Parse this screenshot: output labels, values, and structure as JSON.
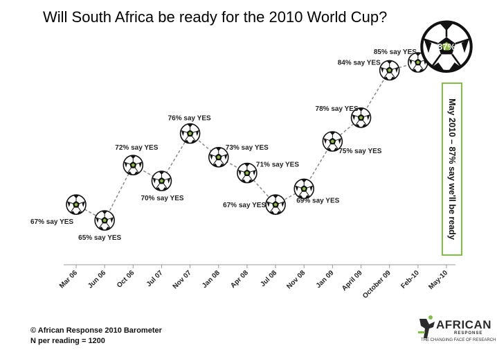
{
  "chart_data": {
    "type": "line",
    "title": "Will South Africa be ready for the 2010 World Cup?",
    "categories": [
      "Mar 06",
      "Jun 06",
      "Oct 06",
      "Jul 07",
      "Nov 07",
      "Jan 08",
      "Apr 08",
      "Jul 08",
      "Nov 08",
      "Jan 09",
      "April 09",
      "October 09",
      "Feb-10",
      "May-10"
    ],
    "values": [
      67,
      65,
      72,
      70,
      76,
      73,
      71,
      67,
      69,
      75,
      78,
      84,
      85,
      87
    ],
    "point_labels": [
      "67% say YES",
      "65% say YES",
      "72% say YES",
      "70% say YES",
      "76% say YES",
      "73% say YES",
      "71% say YES",
      "67% say YES",
      "69% say YES",
      "75% say YES",
      "78% say YES",
      "84% say YES",
      "85% say YES",
      "87%"
    ],
    "line_style": "dashed",
    "marker": "football-icon",
    "grid": false
  },
  "callout": {
    "text": "May 2010 – 87% say we'll be ready",
    "border_color": "#7dc242"
  },
  "footer": {
    "copyright": "© African Response 2010 Barometer",
    "n_per_reading": "N per reading = 1200"
  },
  "logo": {
    "name": "AFRICAN",
    "sub": "RESPONSE",
    "tagline": "THE CHANGING FACE OF RESEARCH"
  }
}
